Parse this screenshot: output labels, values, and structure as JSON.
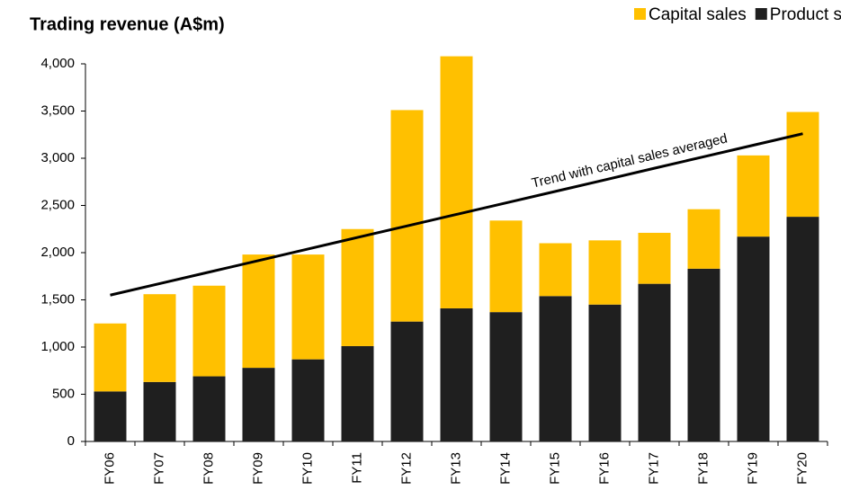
{
  "chart_data": {
    "type": "stacked_bar",
    "title": "Trading revenue (A$m)",
    "categories": [
      "FY06",
      "FY07",
      "FY08",
      "FY09",
      "FY10",
      "FY11",
      "FY12",
      "FY13",
      "FY14",
      "FY15",
      "FY16",
      "FY17",
      "FY18",
      "FY19",
      "FY20"
    ],
    "series": [
      {
        "name": "Product support",
        "color": "#1f1f1f",
        "values": [
          530,
          630,
          690,
          780,
          870,
          1010,
          1270,
          1410,
          1370,
          1540,
          1450,
          1670,
          1830,
          2170,
          2380
        ]
      },
      {
        "name": "Capital sales",
        "color": "#ffc000",
        "values": [
          720,
          930,
          960,
          1200,
          1110,
          1240,
          2240,
          2670,
          970,
          560,
          680,
          540,
          630,
          860,
          1110
        ]
      }
    ],
    "legend_order": [
      1,
      0
    ],
    "trend": {
      "label": "Trend with capital sales averaged",
      "color": "#000000",
      "values": [
        1550,
        1672,
        1794,
        1916,
        2039,
        2161,
        2283,
        2405,
        2527,
        2649,
        2771,
        2894,
        3016,
        3138,
        3260
      ]
    },
    "ylim": [
      0,
      4000
    ],
    "yticks": [
      0,
      500,
      {
        "value": 1000,
        "label": "1,000"
      },
      {
        "value": 1500,
        "label": "1,500"
      },
      {
        "value": 2000,
        "label": "2,000"
      },
      {
        "value": 2500,
        "label": "2,500"
      },
      {
        "value": 3000,
        "label": "3,000"
      },
      {
        "value": 3500,
        "label": "3,500"
      },
      {
        "value": 4000,
        "label": "4,000"
      }
    ],
    "grid": false
  }
}
